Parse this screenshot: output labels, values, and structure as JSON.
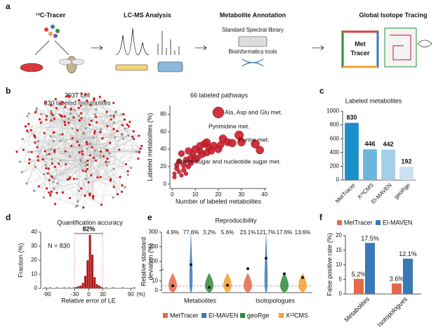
{
  "panel_labels": [
    "a",
    "b",
    "c",
    "d",
    "e",
    "f"
  ],
  "workflow": {
    "steps": [
      "¹³C-Tracer",
      "LC-MS Analysis",
      "Metabolite Annotation",
      "Global Isotope Tracing"
    ],
    "annotation_tools": [
      "Standard Spectral library",
      "Bioinformatics tools"
    ],
    "logo": [
      "Met",
      "Tracer"
    ]
  },
  "network": {
    "cell": "293T cell",
    "caption": "830 labeled metabolites"
  },
  "chart_data": [
    {
      "type": "scatter",
      "title": "66 labeled pathways",
      "xlabel": "Number of labeled metabolites",
      "ylabel": "Labeled metabolites (%)",
      "color": "#cc1e2a",
      "xlim": [
        -1,
        41
      ],
      "ylim": [
        -5,
        90
      ],
      "xticks": [
        0,
        10,
        20,
        30,
        40
      ],
      "yticks": [
        0,
        20,
        40,
        60,
        80
      ],
      "annotations": [
        "Ala, Asp and Glu met.",
        "Pyrimidine met.",
        "Purine met.",
        "Amino sugar and nucleotide sugar met."
      ],
      "x": [
        20,
        22,
        24,
        26,
        29,
        30,
        36,
        38,
        14,
        16,
        18,
        20,
        21,
        12,
        10,
        9,
        8,
        7,
        6,
        5,
        4,
        3,
        2,
        1,
        1,
        2,
        3,
        4,
        5,
        6,
        7,
        8,
        10,
        11,
        13,
        15,
        17,
        12,
        15
      ],
      "values": [
        82,
        52,
        48,
        47,
        56,
        48,
        46,
        39,
        46,
        42,
        44,
        40,
        45,
        38,
        40,
        34,
        30,
        38,
        28,
        22,
        35,
        26,
        18,
        12,
        8,
        22,
        14,
        10,
        16,
        12,
        20,
        24,
        28,
        30,
        34,
        36,
        38,
        44,
        48
      ],
      "sizes": [
        16,
        8,
        7,
        8,
        10,
        8,
        9,
        8,
        7,
        6,
        7,
        7,
        6,
        6,
        7,
        5,
        5,
        6,
        4,
        4,
        5,
        4,
        3,
        2,
        2,
        3,
        2,
        2,
        3,
        2,
        3,
        4,
        5,
        5,
        6,
        6,
        6,
        6,
        7
      ]
    },
    {
      "type": "bar",
      "title": "Labeled metabolites",
      "categories": [
        "MetTracer",
        "X¹³CMS",
        "El-MAVEN",
        "geoRge"
      ],
      "values": [
        830,
        446,
        442,
        192
      ],
      "colors": [
        "#1a8fc9",
        "#6cb6dd",
        "#a4cfe9",
        "#c9e1f2"
      ],
      "ylim": [
        0,
        1000
      ],
      "yticks": [
        0,
        200,
        400,
        600,
        800,
        1000
      ]
    },
    {
      "type": "histogram",
      "title": "Quantification accuracy",
      "xlabel": "Relative error of LE",
      "xunit": "(%)",
      "ylabel": "Fraction (%)",
      "annotation": "N = 830",
      "range_label": "82%",
      "range": [
        -30,
        30
      ],
      "color": "#b01c1c",
      "outside_color": "#999999",
      "bins": [
        -100,
        -95,
        -90,
        -85,
        -80,
        -75,
        -70,
        -65,
        -60,
        -55,
        -50,
        -45,
        -40,
        -35,
        -30,
        -25,
        -20,
        -15,
        -10,
        -5,
        0,
        5,
        10,
        15,
        20,
        25,
        30,
        35,
        40,
        45,
        50,
        55,
        60,
        65,
        70,
        75,
        80,
        85,
        90,
        95,
        100
      ],
      "values": [
        0.5,
        1,
        0.5,
        1,
        0.5,
        0.5,
        1,
        0.5,
        0.5,
        1,
        0.5,
        1,
        0.5,
        1,
        1,
        1.5,
        2,
        4,
        9,
        20,
        38,
        24,
        8,
        3,
        2,
        1,
        0.5,
        1,
        0.5,
        0.5,
        1,
        0.5,
        0.5,
        0.5,
        1,
        0.5,
        0.5,
        0.5,
        0.5,
        1
      ],
      "xlim": [
        -100,
        100
      ],
      "xticks": [
        -90,
        -30,
        0,
        30,
        90
      ],
      "ylim": [
        0,
        40
      ],
      "yticks": [
        0,
        10,
        20,
        30,
        40
      ]
    },
    {
      "type": "violin",
      "title": "Reproducibility",
      "ylabel_lines": [
        "Relative standard",
        "deviation (%)"
      ],
      "categories": [
        "Metabolites",
        "Isotopologues"
      ],
      "ylim": [
        0,
        300
      ],
      "ybreak": [
        20,
        50
      ],
      "yticks": [
        0,
        10,
        100,
        200,
        300
      ],
      "ref_line": 5,
      "series": [
        {
          "name": "MetTracer",
          "color": "#e4694a",
          "values": [
            4.9,
            23.1
          ],
          "value_labels": [
            "4.9%",
            "23.1%"
          ]
        },
        {
          "name": "El-MAVEN",
          "color": "#3a78b8",
          "values": [
            77.6,
            121.7
          ],
          "value_labels": [
            "77.6%",
            "121.7%"
          ]
        },
        {
          "name": "geoRge",
          "color": "#2e8b3a",
          "values": [
            3.2,
            17.6
          ],
          "value_labels": [
            "3.2%",
            "17.6%"
          ]
        },
        {
          "name": "X¹³CMS",
          "color": "#f5a030",
          "values": [
            5.6,
            13.6
          ],
          "value_labels": [
            "5.6%",
            "13.6%"
          ]
        }
      ]
    },
    {
      "type": "grouped_bar",
      "ylabel": "False positive rate (%)",
      "categories": [
        "Metabolites",
        "Isotopologues"
      ],
      "ylim": [
        0,
        20
      ],
      "yticks": [
        0,
        5,
        10,
        15,
        20
      ],
      "series": [
        {
          "name": "MetTracer",
          "color": "#e4694a",
          "values": [
            5.2,
            3.6
          ],
          "value_labels": [
            "5.2%",
            "3.6%"
          ]
        },
        {
          "name": "El-MAVEN",
          "color": "#3a78b8",
          "values": [
            17.5,
            12.1
          ],
          "value_labels": [
            "17.5%",
            "12.1%"
          ]
        }
      ]
    }
  ]
}
